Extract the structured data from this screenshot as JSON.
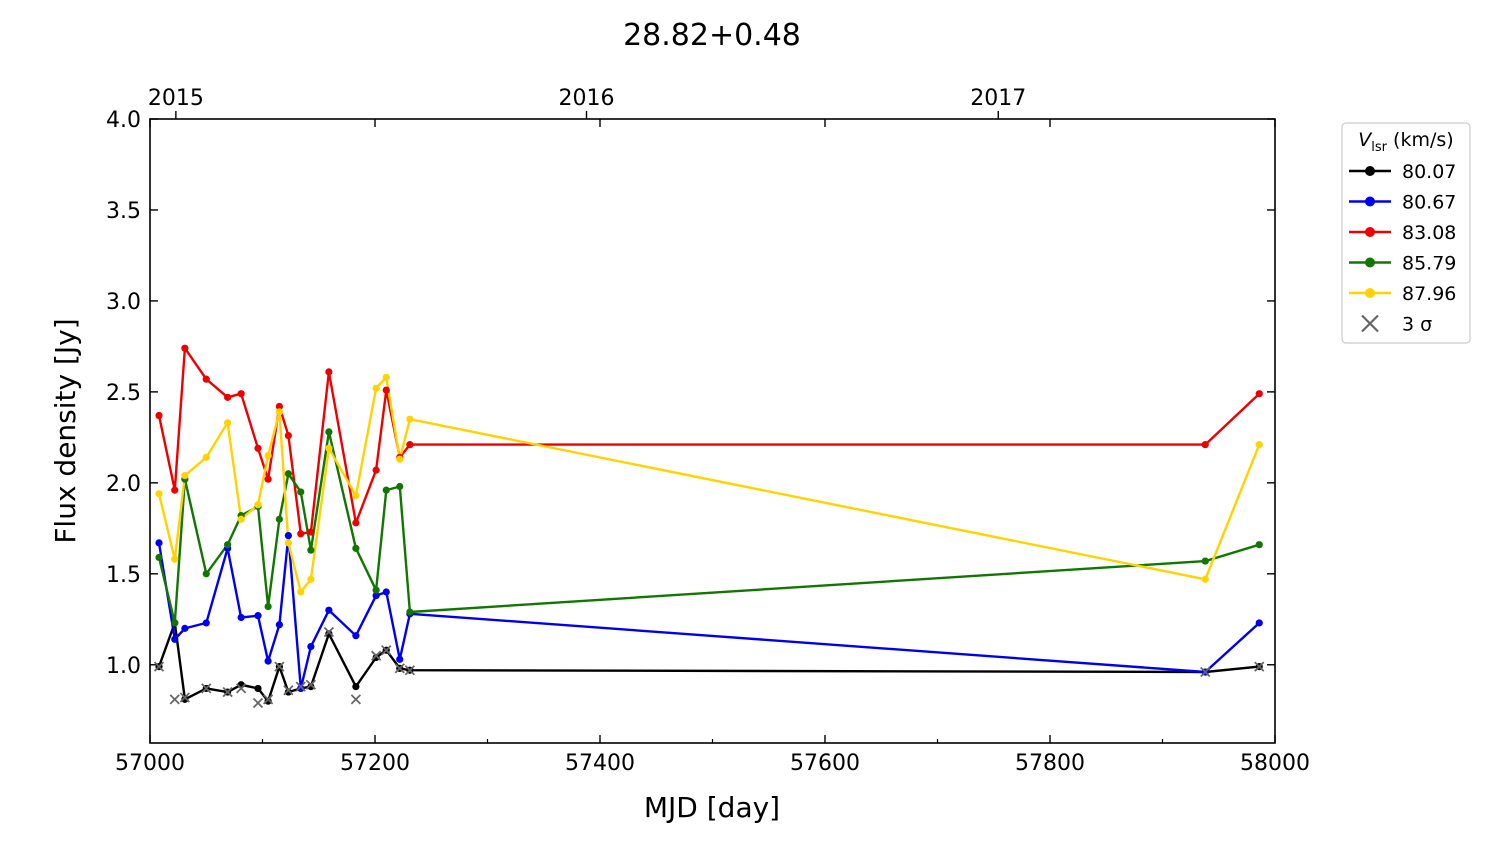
{
  "chart_data": {
    "type": "line",
    "title": "28.82+0.48",
    "xlabel": "MJD [day]",
    "ylabel": "Flux density [Jy]",
    "xlim": [
      57000,
      58000
    ],
    "ylim": [
      0.57,
      4.0
    ],
    "xticks": [
      57000,
      57200,
      57400,
      57600,
      57800,
      58000
    ],
    "yticks": [
      1.0,
      1.5,
      2.0,
      2.5,
      3.0,
      3.5,
      4.0
    ],
    "top_axis": {
      "ticks": [
        {
          "label": "2015",
          "x": 57023
        },
        {
          "label": "2016",
          "x": 57388
        },
        {
          "label": "2017",
          "x": 57754
        }
      ]
    },
    "grid": false,
    "legend": {
      "position": "outside-right",
      "title_var": "V",
      "title_sub": "lsr",
      "title_unit": " (km/s)",
      "sigma_label": "3 σ"
    },
    "x": [
      57008,
      57022,
      57031,
      57050,
      57069,
      57081,
      57096,
      57105,
      57115,
      57123,
      57134,
      57143,
      57159,
      57183,
      57201,
      57210,
      57222,
      57231,
      57938,
      57986
    ],
    "series": [
      {
        "name": "80.07",
        "color": "#000000",
        "values": [
          0.99,
          1.23,
          0.81,
          0.87,
          0.85,
          0.89,
          0.87,
          0.8,
          0.99,
          0.85,
          0.87,
          0.88,
          1.17,
          0.88,
          1.04,
          1.08,
          0.98,
          0.97,
          0.96,
          0.99
        ]
      },
      {
        "name": "80.67",
        "color": "#0000ee",
        "values": [
          1.67,
          1.14,
          1.2,
          1.23,
          1.64,
          1.26,
          1.27,
          1.02,
          1.22,
          1.71,
          0.87,
          1.1,
          1.3,
          1.16,
          1.38,
          1.4,
          1.03,
          1.28,
          0.96,
          1.23
        ]
      },
      {
        "name": "83.08",
        "color": "#ee0000",
        "values": [
          2.37,
          1.96,
          2.74,
          2.57,
          2.47,
          2.49,
          2.19,
          2.02,
          2.42,
          2.26,
          1.72,
          1.73,
          2.61,
          1.78,
          2.07,
          2.51,
          2.14,
          2.21,
          2.21,
          2.49
        ]
      },
      {
        "name": "85.79",
        "color": "#117700",
        "values": [
          1.59,
          1.23,
          2.02,
          1.5,
          1.66,
          1.82,
          1.87,
          1.32,
          1.8,
          2.05,
          1.95,
          1.63,
          2.28,
          1.64,
          1.41,
          1.96,
          1.98,
          1.29,
          1.57,
          1.66
        ]
      },
      {
        "name": "87.96",
        "color": "#ffd200",
        "values": [
          1.94,
          1.58,
          2.04,
          2.14,
          2.33,
          1.8,
          1.88,
          2.15,
          2.39,
          1.67,
          1.4,
          1.47,
          2.19,
          1.93,
          2.52,
          2.58,
          2.13,
          2.35,
          1.47,
          2.21
        ]
      }
    ],
    "sigma3": {
      "x": [
        57008,
        57022,
        57031,
        57050,
        57069,
        57081,
        57096,
        57105,
        57115,
        57123,
        57134,
        57143,
        57159,
        57183,
        57201,
        57210,
        57222,
        57231,
        57938,
        57986
      ],
      "values": [
        0.99,
        0.81,
        0.82,
        0.87,
        0.85,
        0.87,
        0.79,
        0.81,
        0.99,
        0.86,
        0.88,
        0.89,
        1.18,
        0.81,
        1.05,
        1.08,
        0.98,
        0.97,
        0.96,
        0.99
      ]
    }
  }
}
